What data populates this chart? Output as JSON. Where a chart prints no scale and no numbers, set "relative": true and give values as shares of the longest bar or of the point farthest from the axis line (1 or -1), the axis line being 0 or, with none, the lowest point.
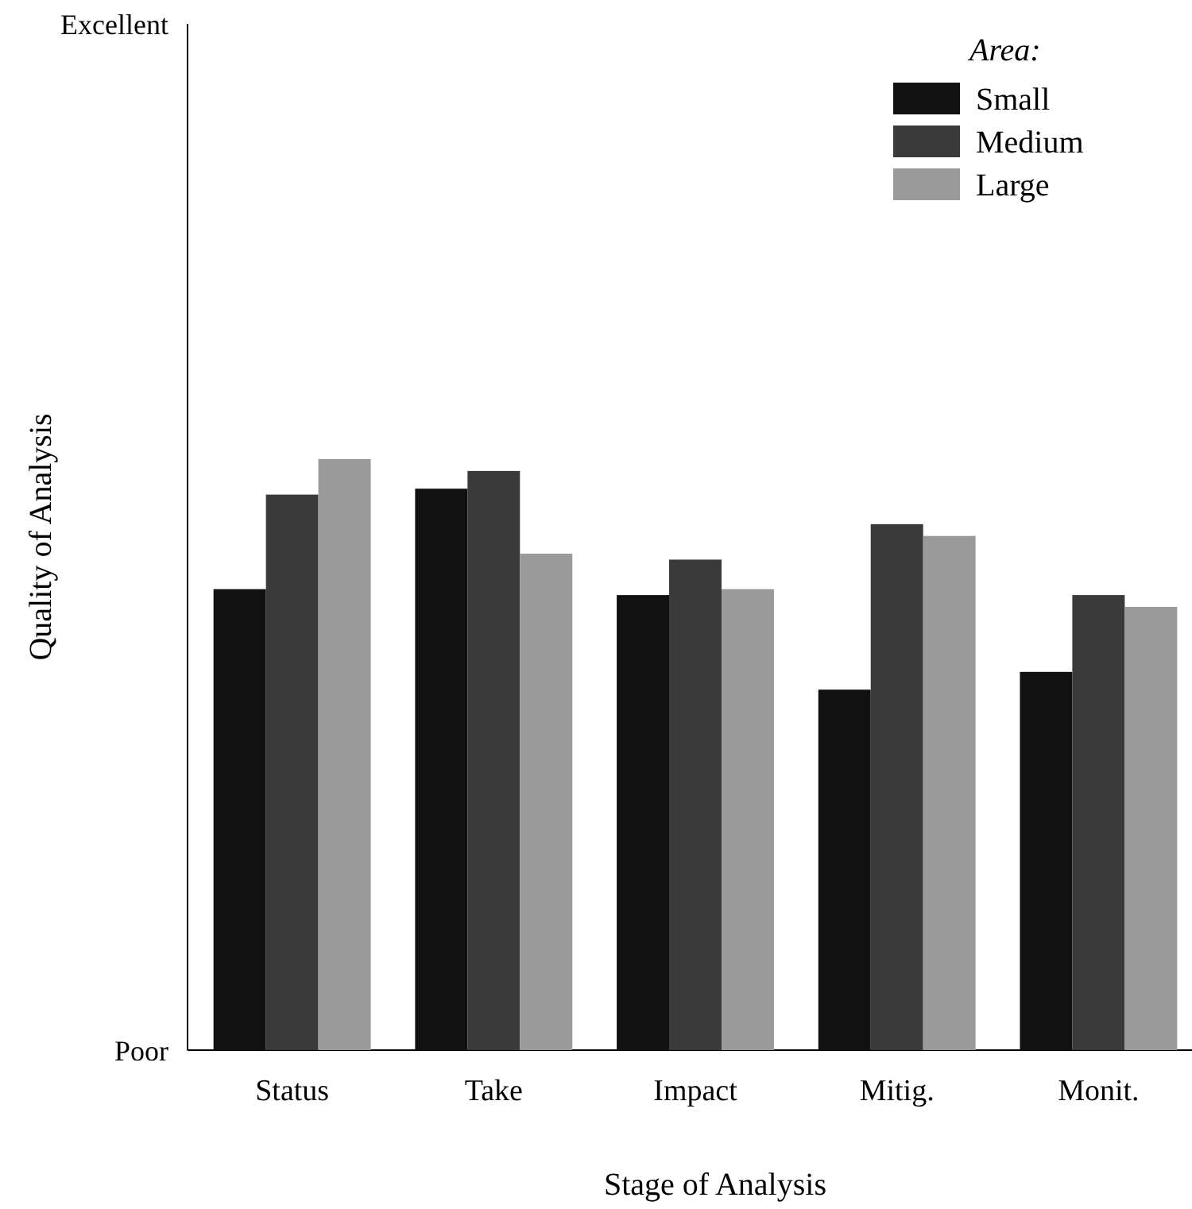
{
  "chart_data": {
    "type": "bar",
    "xlabel": "Stage of Analysis",
    "ylabel": "Quality of Analysis",
    "legend_title": "Area:",
    "legend": "top right",
    "relative": true,
    "annotations": [
      "Excellent",
      "Poor"
    ],
    "categories": [
      "Status",
      "Take",
      "Impact",
      "Mitig.",
      "Monit."
    ],
    "series": [
      {
        "name": "Small",
        "color": "#111111",
        "values": [
          0.78,
          0.95,
          0.77,
          0.61,
          0.64
        ]
      },
      {
        "name": "Medium",
        "color": "#3a3a3a",
        "values": [
          0.94,
          0.98,
          0.83,
          0.89,
          0.77
        ]
      },
      {
        "name": "Large",
        "color": "#9a9a9a",
        "values": [
          1,
          0.84,
          0.78,
          0.87,
          0.75
        ]
      }
    ]
  }
}
